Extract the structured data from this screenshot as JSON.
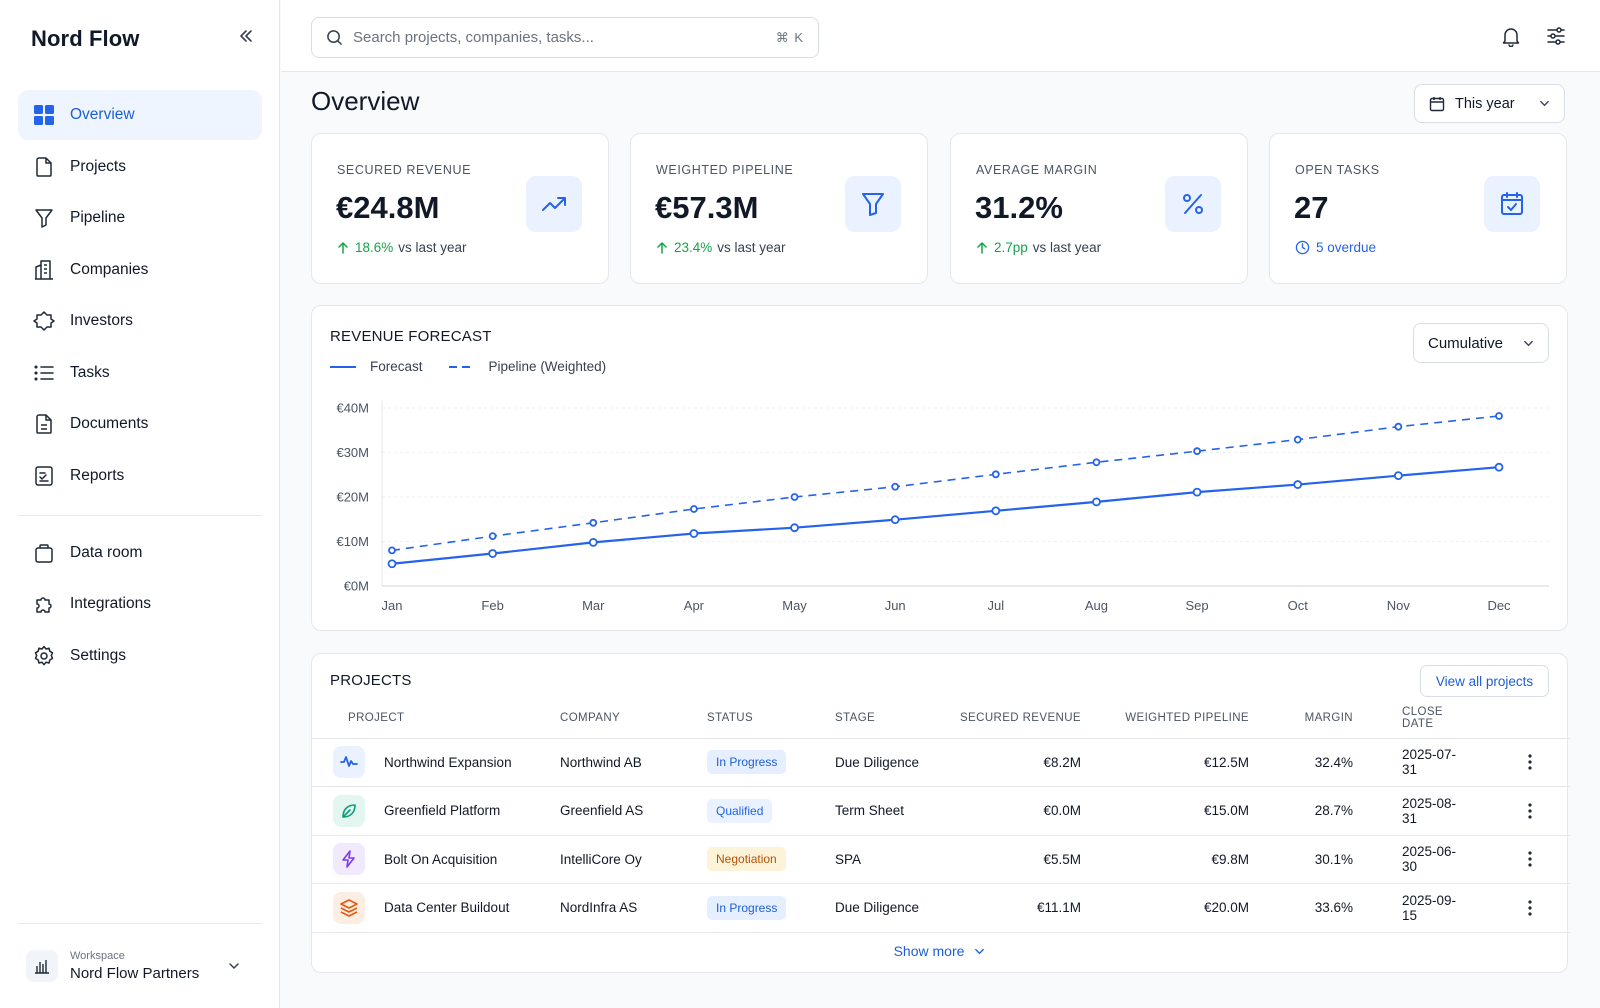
{
  "app": {
    "name": "Nord Flow"
  },
  "sidebar": {
    "items": [
      {
        "label": "Overview",
        "icon": "grid-icon",
        "active": true
      },
      {
        "label": "Projects",
        "icon": "file-icon"
      },
      {
        "label": "Pipeline",
        "icon": "funnel-icon"
      },
      {
        "label": "Companies",
        "icon": "building-icon"
      },
      {
        "label": "Investors",
        "icon": "hexagon-icon"
      },
      {
        "label": "Tasks",
        "icon": "list-icon"
      },
      {
        "label": "Documents",
        "icon": "document-icon"
      },
      {
        "label": "Reports",
        "icon": "report-icon"
      }
    ],
    "secondary": [
      {
        "label": "Data room",
        "icon": "bag-icon"
      },
      {
        "label": "Integrations",
        "icon": "puzzle-icon"
      },
      {
        "label": "Settings",
        "icon": "gear-icon"
      }
    ],
    "workspace": {
      "label": "Workspace",
      "name": "Nord Flow Partners"
    }
  },
  "search": {
    "placeholder": "Search projects, companies, tasks...",
    "shortcut": "⌘ K"
  },
  "header": {
    "title": "Overview",
    "period": "This year"
  },
  "kpis": [
    {
      "label": "SECURED REVENUE",
      "value": "€24.8M",
      "delta": "18.6%",
      "suffix": "vs last year",
      "icon": "trend-up-icon"
    },
    {
      "label": "WEIGHTED PIPELINE",
      "value": "€57.3M",
      "delta": "23.4%",
      "suffix": "vs last year",
      "icon": "funnel-icon"
    },
    {
      "label": "AVERAGE MARGIN",
      "value": "31.2%",
      "delta": "2.7pp",
      "suffix": "vs last year",
      "icon": "percent-icon"
    },
    {
      "label": "OPEN TASKS",
      "value": "27",
      "delta": "5 overdue",
      "suffix": "",
      "icon": "calendar-check-icon"
    }
  ],
  "forecast": {
    "title": "REVENUE FORECAST",
    "mode": "Cumulative",
    "legend": [
      "Forecast",
      "Pipeline (Weighted)"
    ]
  },
  "chart_data": {
    "type": "line",
    "title": "REVENUE FORECAST",
    "x": [
      "Jan",
      "Feb",
      "Mar",
      "Apr",
      "May",
      "Jun",
      "Jul",
      "Aug",
      "Sep",
      "Oct",
      "Nov",
      "Dec"
    ],
    "series": [
      {
        "name": "Forecast",
        "style": "solid",
        "color": "#2563eb",
        "values": [
          5,
          7.3,
          9.8,
          11.8,
          13.1,
          14.9,
          16.9,
          18.9,
          21.1,
          22.8,
          24.8,
          26.7
        ]
      },
      {
        "name": "Pipeline (Weighted)",
        "style": "dashed",
        "color": "#2563eb",
        "values": [
          8,
          11.2,
          14.2,
          17.3,
          20,
          22.3,
          25.1,
          27.8,
          30.3,
          32.9,
          35.8,
          38.2
        ]
      }
    ],
    "y_ticks": [
      "€0M",
      "€10M",
      "€20M",
      "€30M",
      "€40M"
    ],
    "ylim": [
      0,
      40
    ],
    "grid": true
  },
  "projects": {
    "title": "PROJECTS",
    "view_all": "View all projects",
    "show_more": "Show more",
    "columns": [
      "PROJECT",
      "COMPANY",
      "STATUS",
      "STAGE",
      "SECURED REVENUE",
      "WEIGHTED PIPELINE",
      "MARGIN",
      "CLOSE DATE"
    ],
    "rows": [
      {
        "icon": "activity-icon",
        "icon_color": "#2563eb",
        "icon_bg": "#eaf2ff",
        "name": "Northwind Expansion",
        "company": "Northwind AB",
        "status": "In Progress",
        "status_color": "#1d5fd6",
        "status_bg": "#e6efff",
        "stage": "Due Diligence",
        "secured": "€8.2M",
        "pipeline": "€12.5M",
        "margin": "32.4%",
        "close": "2025-07-31"
      },
      {
        "icon": "leaf-icon",
        "icon_color": "#0f9d77",
        "icon_bg": "#e3f6ef",
        "name": "Greenfield Platform",
        "company": "Greenfield AS",
        "status": "Qualified",
        "status_color": "#2563eb",
        "status_bg": "#eaf2ff",
        "stage": "Term Sheet",
        "secured": "€0.0M",
        "pipeline": "€15.0M",
        "margin": "28.7%",
        "close": "2025-08-31"
      },
      {
        "icon": "bolt-icon",
        "icon_color": "#7c3aed",
        "icon_bg": "#f1eafe",
        "name": "Bolt On Acquisition",
        "company": "IntelliCore Oy",
        "status": "Negotiation",
        "status_color": "#b45309",
        "status_bg": "#fdf3d8",
        "stage": "SPA",
        "secured": "€5.5M",
        "pipeline": "€9.8M",
        "margin": "30.1%",
        "close": "2025-06-30"
      },
      {
        "icon": "layers-icon",
        "icon_color": "#ea580c",
        "icon_bg": "#fdeee4",
        "name": "Data Center Buildout",
        "company": "NordInfra AS",
        "status": "In Progress",
        "status_color": "#1d5fd6",
        "status_bg": "#e6efff",
        "stage": "Due Diligence",
        "secured": "€11.1M",
        "pipeline": "€20.0M",
        "margin": "33.6%",
        "close": "2025-09-15"
      }
    ]
  }
}
